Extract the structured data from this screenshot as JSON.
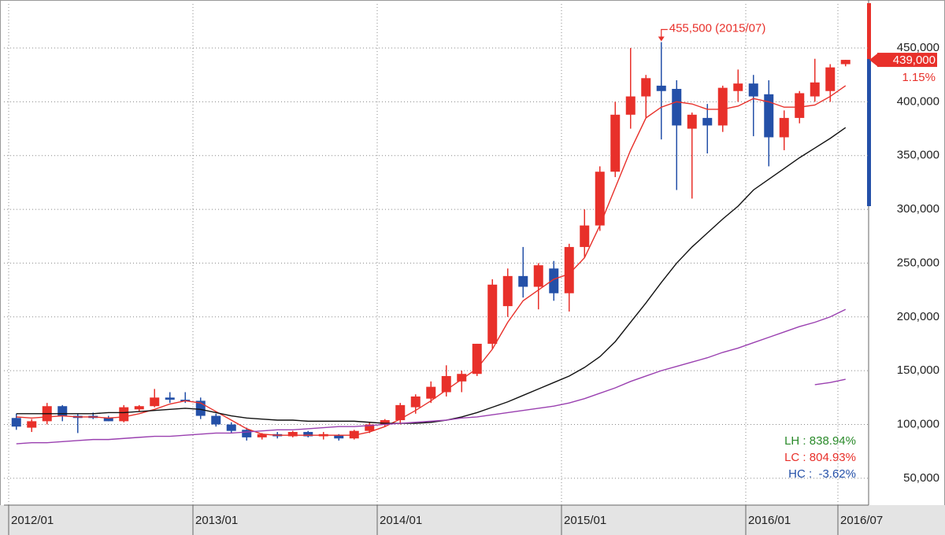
{
  "chart_data": {
    "type": "candlestick",
    "categories": [
      "2012/01",
      null,
      null,
      null,
      null,
      null,
      null,
      null,
      null,
      null,
      null,
      null,
      "2013/01",
      null,
      null,
      null,
      null,
      null,
      null,
      null,
      null,
      null,
      null,
      null,
      "2014/01",
      null,
      null,
      null,
      null,
      null,
      null,
      null,
      null,
      null,
      null,
      null,
      "2015/01",
      null,
      null,
      null,
      null,
      null,
      null,
      null,
      null,
      null,
      null,
      null,
      "2016/01",
      null,
      null,
      null,
      null,
      null,
      "2016/07"
    ],
    "open": [
      106000,
      97000,
      103000,
      117000,
      108000,
      108000,
      106000,
      103000,
      114000,
      117000,
      125000,
      123000,
      122000,
      108000,
      100000,
      95000,
      88000,
      91000,
      89000,
      93000,
      89000,
      90000,
      87000,
      94000,
      100000,
      104000,
      116000,
      124000,
      130000,
      140000,
      147000,
      175000,
      210000,
      238000,
      228000,
      245000,
      222000,
      265000,
      285000,
      335000,
      388000,
      405000,
      415000,
      412000,
      375000,
      385000,
      378000,
      410000,
      417000,
      407000,
      367000,
      385000,
      405000,
      410000,
      435000
    ],
    "high": [
      110000,
      105000,
      120000,
      118000,
      110000,
      111000,
      108000,
      118000,
      118000,
      133000,
      130000,
      130000,
      125000,
      110000,
      102000,
      97000,
      92000,
      93000,
      94000,
      94000,
      93000,
      91000,
      95000,
      102000,
      105000,
      120000,
      128000,
      140000,
      155000,
      150000,
      175000,
      235000,
      245000,
      265000,
      250000,
      252000,
      268000,
      300000,
      340000,
      400000,
      450000,
      425000,
      455500,
      420000,
      390000,
      398000,
      415000,
      430000,
      425000,
      420000,
      392000,
      410000,
      440000,
      435000,
      439000
    ],
    "low": [
      95000,
      93000,
      100000,
      103000,
      92000,
      105000,
      103000,
      102000,
      112000,
      116000,
      120000,
      120000,
      105000,
      98000,
      92000,
      85000,
      86000,
      87000,
      88000,
      88000,
      86000,
      85000,
      86000,
      92000,
      98000,
      100000,
      110000,
      120000,
      126000,
      130000,
      145000,
      170000,
      200000,
      218000,
      207000,
      215000,
      205000,
      255000,
      280000,
      330000,
      375000,
      385000,
      365000,
      318000,
      310000,
      352000,
      372000,
      400000,
      368000,
      340000,
      355000,
      380000,
      400000,
      400000,
      433000
    ],
    "close": [
      98000,
      103000,
      117000,
      108000,
      106000,
      106000,
      103000,
      116000,
      117000,
      125000,
      123000,
      122000,
      108000,
      100000,
      94000,
      88000,
      91000,
      89000,
      93000,
      89000,
      91000,
      87000,
      94000,
      100000,
      104000,
      118000,
      126000,
      135000,
      145000,
      147000,
      175000,
      230000,
      238000,
      228000,
      248000,
      222000,
      265000,
      285000,
      335000,
      388000,
      405000,
      422000,
      410000,
      378000,
      388000,
      378000,
      413000,
      417000,
      405000,
      367000,
      385000,
      408000,
      418000,
      432000,
      439000
    ],
    "up_color": "#e8302a",
    "down_color": "#2450a8",
    "lines": [
      {
        "color": "#e8302a",
        "values": [
          107000,
          106000,
          107000,
          108000,
          107000,
          107000,
          106000,
          107000,
          110000,
          114000,
          119000,
          122000,
          120000,
          112000,
          104000,
          96000,
          91000,
          90000,
          90000,
          90000,
          90000,
          90000,
          90000,
          93000,
          98000,
          105000,
          113000,
          122000,
          132000,
          142000,
          152000,
          170000,
          195000,
          215000,
          225000,
          235000,
          240000,
          255000,
          285000,
          320000,
          355000,
          385000,
          395000,
          400000,
          398000,
          393000,
          393000,
          396000,
          403000,
          400000,
          395000,
          395000,
          397000,
          405000,
          415000
        ]
      },
      {
        "color": "#111111",
        "values": [
          110000,
          110000,
          110000,
          110000,
          110000,
          110000,
          111000,
          111000,
          112000,
          113000,
          114000,
          115000,
          114000,
          111000,
          108000,
          106000,
          105000,
          104000,
          104000,
          103000,
          103000,
          103000,
          103000,
          102000,
          101000,
          101000,
          101000,
          102000,
          104000,
          107000,
          111000,
          116000,
          121000,
          127000,
          133000,
          139000,
          145000,
          153000,
          163000,
          177000,
          195000,
          213000,
          232000,
          250000,
          265000,
          278000,
          291000,
          303000,
          318000,
          328000,
          338000,
          348000,
          357000,
          366000,
          376000
        ]
      },
      {
        "color": "#9a40b0",
        "values": [
          82000,
          83000,
          83000,
          84000,
          85000,
          86000,
          86000,
          87000,
          88000,
          89000,
          89000,
          90000,
          91000,
          92000,
          92000,
          93000,
          94000,
          95000,
          95000,
          96000,
          97000,
          98000,
          98000,
          99000,
          100000,
          101000,
          102000,
          103000,
          104000,
          106000,
          107000,
          109000,
          111000,
          113000,
          115000,
          117000,
          120000,
          124000,
          129000,
          134000,
          140000,
          145000,
          150000,
          154000,
          158000,
          162000,
          167000,
          171000,
          176000,
          181000,
          186000,
          191000,
          195000,
          200000,
          207000
        ]
      },
      {
        "color": "#9a40b0",
        "values": [
          null,
          null,
          null,
          null,
          null,
          null,
          null,
          null,
          null,
          null,
          null,
          null,
          null,
          null,
          null,
          null,
          null,
          null,
          null,
          null,
          null,
          null,
          null,
          null,
          null,
          null,
          null,
          null,
          null,
          null,
          null,
          null,
          null,
          null,
          null,
          null,
          null,
          null,
          null,
          null,
          null,
          null,
          null,
          null,
          null,
          null,
          null,
          null,
          null,
          null,
          null,
          null,
          137000,
          139000,
          142000
        ]
      }
    ],
    "ylim": [
      25000,
      491000
    ],
    "yticks": [
      {
        "value": 50000,
        "label": "50,000"
      },
      {
        "value": 100000,
        "label": "100,000"
      },
      {
        "value": 150000,
        "label": "150,000"
      },
      {
        "value": 200000,
        "label": "200,000"
      },
      {
        "value": 250000,
        "label": "250,000"
      },
      {
        "value": 300000,
        "label": "300,000"
      },
      {
        "value": 350000,
        "label": "350,000"
      },
      {
        "value": 400000,
        "label": "400,000"
      },
      {
        "value": 450000,
        "label": "450,000"
      }
    ],
    "grid": true,
    "peak_label": "455,500 (2015/07)",
    "last_label": "439,000",
    "change_label": "1.15%",
    "stats": [
      {
        "text": "LH : 838.94%",
        "color": "#2a8a2a"
      },
      {
        "text": "LC : 804.93%",
        "color": "#e8302a"
      },
      {
        "text": "HC :  -3.62%",
        "color": "#2450a8"
      }
    ]
  }
}
